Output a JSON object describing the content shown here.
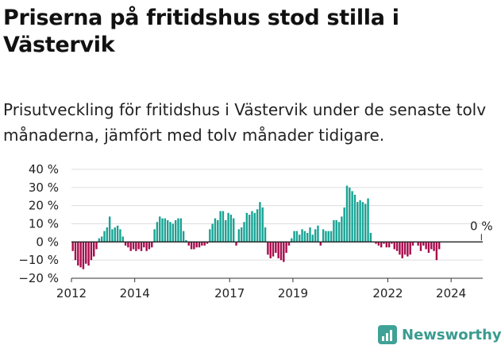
{
  "header": {
    "title": "Priserna på fritidshus stod stilla i Västervik",
    "subtitle": "Prisutveckling för fritidshus i Västervik under de senaste tolv månaderna, jämfört med tolv månader tidigare."
  },
  "brand": {
    "name": "Newsworthy",
    "icon": "newsworthy-logo-icon",
    "color": "#3a9b8f"
  },
  "colors": {
    "positive": "#18a394",
    "negative": "#a80a4c",
    "zero_line": "#222222",
    "grid": "#dddddd"
  },
  "chart_data": {
    "type": "bar",
    "title": "Priserna på fritidshus stod stilla i Västervik",
    "ylim": [
      -20,
      40
    ],
    "yticks": [
      -20,
      -10,
      0,
      10,
      20,
      30,
      40
    ],
    "ytick_labels": [
      "−20 %",
      "−10 %",
      "0 %",
      "10 %",
      "20 %",
      "30 %",
      "40 %"
    ],
    "xticks": [
      2012,
      2014,
      2017,
      2019,
      2022,
      2024
    ],
    "start": "2012-01",
    "end": "2024-12",
    "annotation": {
      "label": "0 %",
      "at": "2024-12",
      "value": 0
    },
    "values": [
      -5,
      -10,
      -13,
      -14,
      -15,
      -12,
      -13,
      -10,
      -8,
      -4,
      2,
      3,
      6,
      8,
      14,
      7,
      8,
      9,
      7,
      3,
      -2,
      -3,
      -5,
      -4,
      -5,
      -4,
      -5,
      -3,
      -5,
      -4,
      -3,
      7,
      11,
      14,
      13,
      13,
      12,
      11,
      10,
      12,
      13,
      13,
      6,
      1,
      -2,
      -4,
      -4,
      -3,
      -3,
      -2,
      -2,
      -1,
      7,
      10,
      13,
      12,
      17,
      17,
      12,
      16,
      15,
      13,
      -2,
      7,
      8,
      11,
      16,
      15,
      17,
      16,
      18,
      22,
      19,
      8,
      -7,
      -9,
      -8,
      -6,
      -9,
      -10,
      -11,
      -6,
      -2,
      2,
      6,
      6,
      4,
      7,
      6,
      5,
      8,
      4,
      7,
      9,
      -2,
      7,
      6,
      6,
      6,
      12,
      12,
      11,
      14,
      19,
      31,
      30,
      28,
      26,
      22,
      23,
      22,
      21,
      24,
      5,
      0,
      -1,
      -2,
      -3,
      -1,
      -3,
      -3,
      -1,
      -4,
      -5,
      -7,
      -9,
      -7,
      -8,
      -7,
      -2,
      0,
      -2,
      -5,
      -2,
      -4,
      -6,
      -4,
      -5,
      -10,
      -4,
      0
    ]
  }
}
